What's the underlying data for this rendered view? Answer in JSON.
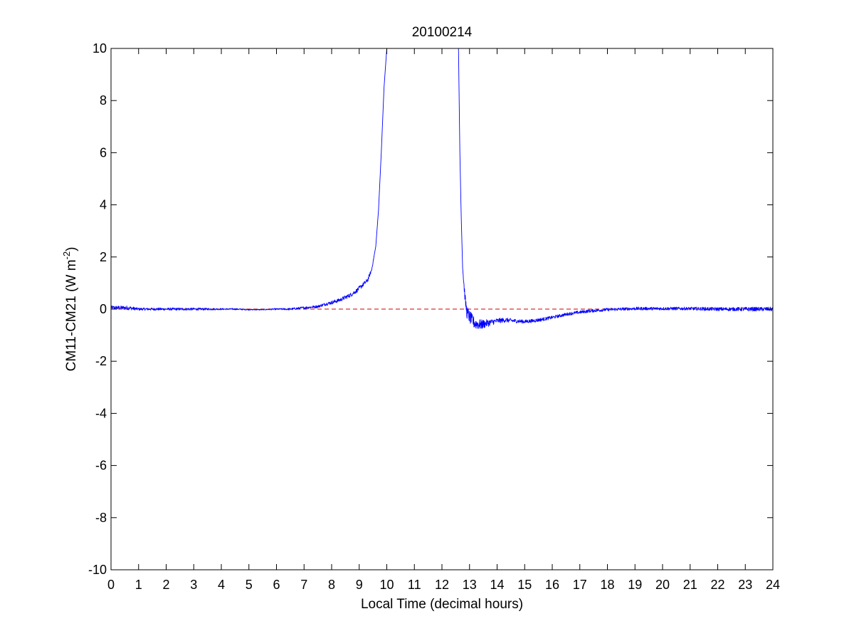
{
  "chart_data": {
    "type": "line",
    "title": "20100214",
    "xlabel": "Local Time (decimal hours)",
    "ylabel": {
      "base": "CM11-CM21 (W m",
      "superscript": "-2",
      "suffix": ")"
    },
    "xlim": [
      0,
      24
    ],
    "ylim": [
      -10,
      10
    ],
    "xticks": [
      0,
      1,
      2,
      3,
      4,
      5,
      6,
      7,
      8,
      9,
      10,
      11,
      12,
      13,
      14,
      15,
      16,
      17,
      18,
      19,
      20,
      21,
      22,
      23,
      24
    ],
    "yticks": [
      -10,
      -8,
      -6,
      -4,
      -2,
      0,
      2,
      4,
      6,
      8,
      10
    ],
    "grid": false,
    "box": true,
    "series": [
      {
        "style": "solid",
        "color": "#0000ff",
        "x": [
          0,
          0.3,
          0.6,
          1.0,
          1.5,
          2.0,
          2.5,
          3.0,
          3.5,
          4.0,
          4.5,
          5.0,
          5.5,
          6.0,
          6.5,
          7.0,
          7.5,
          7.8,
          8.0,
          8.3,
          8.5,
          8.7,
          8.9,
          9.1,
          9.3,
          9.45,
          9.6,
          9.7,
          9.8,
          9.9,
          10.0,
          12.6,
          12.65,
          12.7,
          12.75,
          12.8,
          12.85,
          12.9,
          13.0,
          13.1,
          13.2,
          13.4,
          13.6,
          13.8,
          14.0,
          14.3,
          14.6,
          15.0,
          15.3,
          15.6,
          16.0,
          16.3,
          16.6,
          17.0,
          17.3,
          17.6,
          18.0,
          18.5,
          19.0,
          19.5,
          20.0,
          20.5,
          21.0,
          21.5,
          22.0,
          22.5,
          23.0,
          23.5,
          24.0
        ],
        "y": [
          0.05,
          0.05,
          0.05,
          0.0,
          0.0,
          0.0,
          0.0,
          0.0,
          0.0,
          0.0,
          0.0,
          -0.02,
          -0.02,
          0.0,
          0.0,
          0.05,
          0.1,
          0.2,
          0.25,
          0.35,
          0.45,
          0.55,
          0.7,
          0.9,
          1.1,
          1.5,
          2.4,
          3.8,
          6.0,
          8.5,
          10.0,
          10.0,
          6.0,
          3.5,
          1.6,
          0.9,
          0.3,
          -0.1,
          -0.3,
          -0.45,
          -0.55,
          -0.6,
          -0.55,
          -0.5,
          -0.45,
          -0.42,
          -0.45,
          -0.48,
          -0.45,
          -0.4,
          -0.32,
          -0.25,
          -0.18,
          -0.12,
          -0.08,
          -0.05,
          -0.02,
          0.0,
          0.02,
          0.02,
          0.02,
          0.02,
          0.02,
          0.01,
          0.0,
          0.0,
          0.0,
          0.0,
          0.0
        ],
        "noise_amplitude": [
          0.08,
          0.08,
          0.08,
          0.05,
          0.05,
          0.05,
          0.05,
          0.05,
          0.04,
          0.03,
          0.03,
          0.02,
          0.02,
          0.03,
          0.04,
          0.05,
          0.05,
          0.06,
          0.07,
          0.07,
          0.08,
          0.08,
          0.08,
          0.08,
          0.08,
          0.06,
          0.0,
          0.0,
          0.0,
          0.0,
          0.0,
          0.0,
          0.0,
          0.0,
          0.05,
          0.15,
          0.2,
          0.25,
          0.25,
          0.25,
          0.22,
          0.2,
          0.15,
          0.12,
          0.1,
          0.09,
          0.08,
          0.07,
          0.07,
          0.07,
          0.06,
          0.06,
          0.06,
          0.06,
          0.06,
          0.06,
          0.06,
          0.06,
          0.06,
          0.06,
          0.06,
          0.06,
          0.06,
          0.07,
          0.07,
          0.07,
          0.08,
          0.08,
          0.08
        ]
      },
      {
        "style": "dashed",
        "color": "#cc0000",
        "x": [
          0,
          24
        ],
        "y": [
          0,
          0
        ]
      }
    ]
  }
}
